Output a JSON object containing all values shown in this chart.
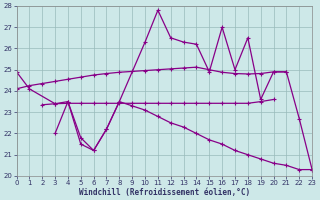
{
  "xlim": [
    0,
    23
  ],
  "ylim": [
    20,
    28
  ],
  "yticks": [
    20,
    21,
    22,
    23,
    24,
    25,
    26,
    27,
    28
  ],
  "xticks": [
    0,
    1,
    2,
    3,
    4,
    5,
    6,
    7,
    8,
    9,
    10,
    11,
    12,
    13,
    14,
    15,
    16,
    17,
    18,
    19,
    20,
    21,
    22,
    23
  ],
  "xlabel": "Windchill (Refroidissement éolien,°C)",
  "background_color": "#cde8e8",
  "line_color": "#880088",
  "grid_color": "#99bbbb",
  "line1_x": [
    0,
    1,
    3,
    4,
    5,
    6,
    7,
    8,
    10,
    11,
    12,
    13,
    14,
    15,
    16,
    17,
    18,
    19,
    20,
    21,
    22,
    23
  ],
  "line1_y": [
    24.9,
    24.1,
    23.4,
    23.5,
    21.8,
    21.2,
    22.2,
    23.5,
    26.3,
    27.8,
    26.5,
    26.3,
    26.2,
    24.9,
    27.0,
    25.0,
    26.5,
    23.6,
    24.9,
    24.9,
    22.7,
    20.3
  ],
  "line2_x": [
    0,
    1,
    2,
    3,
    4,
    5,
    6,
    7,
    8,
    9,
    10,
    11,
    12,
    13,
    14,
    15,
    16,
    17,
    18,
    19,
    20,
    21
  ],
  "line2_y": [
    24.1,
    24.25,
    24.35,
    24.45,
    24.55,
    24.65,
    24.75,
    24.82,
    24.88,
    24.92,
    24.96,
    25.0,
    25.04,
    25.08,
    25.12,
    25.0,
    24.88,
    24.82,
    24.8,
    24.82,
    24.9,
    24.9
  ],
  "line3_x": [
    2,
    3,
    4,
    5,
    6,
    7,
    8,
    9,
    10,
    11,
    12,
    13,
    14,
    15,
    16,
    17,
    18,
    19,
    20
  ],
  "line3_y": [
    23.35,
    23.4,
    23.42,
    23.42,
    23.42,
    23.42,
    23.42,
    23.42,
    23.42,
    23.42,
    23.42,
    23.42,
    23.42,
    23.42,
    23.42,
    23.42,
    23.42,
    23.5,
    23.6
  ],
  "line4_x": [
    3,
    4,
    5,
    6,
    7,
    8,
    9,
    10,
    11,
    12,
    13,
    14,
    15,
    16,
    17,
    18,
    19,
    20,
    21,
    22,
    23
  ],
  "line4_y": [
    22.0,
    23.5,
    21.5,
    21.2,
    22.2,
    23.5,
    23.3,
    23.1,
    22.8,
    22.5,
    22.3,
    22.0,
    21.7,
    21.5,
    21.2,
    21.0,
    20.8,
    20.6,
    20.5,
    20.3,
    20.3
  ]
}
